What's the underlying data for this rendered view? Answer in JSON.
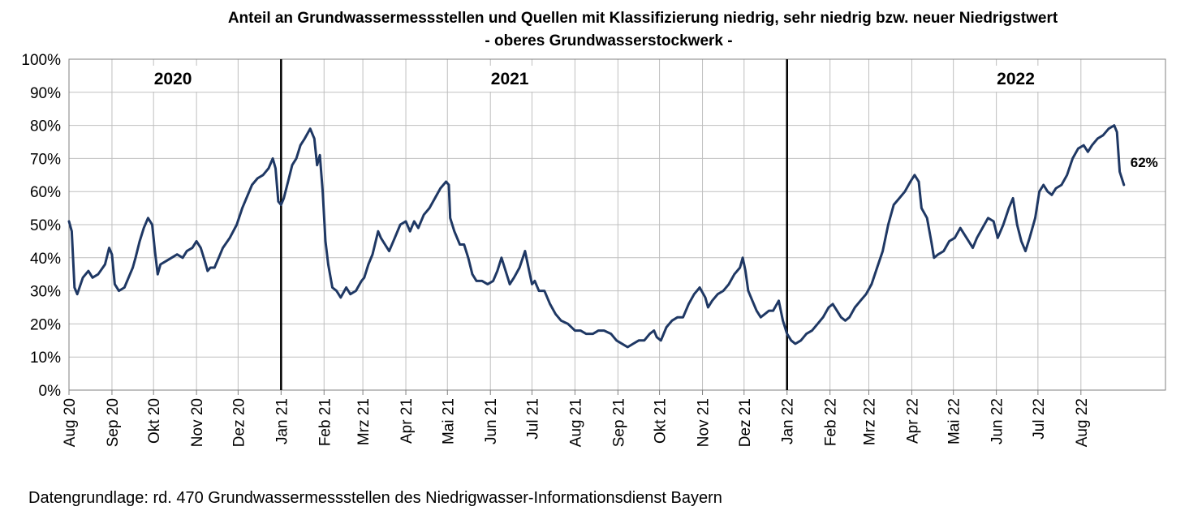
{
  "chart_data": {
    "type": "line",
    "title": "Anteil an Grundwassermessstellen und Quellen mit Klassifizierung niedrig, sehr niedrig bzw. neuer Niedrigstwert",
    "subtitle": "- oberes Grundwasserstockwerk -",
    "source_note": "Datengrundlage: rd. 470 Grundwassermessstellen des Niedrigwasser-Informationsdienst Bayern",
    "y_unit": "%",
    "ylim": [
      0,
      100
    ],
    "y_ticks": [
      "0%",
      "10%",
      "20%",
      "30%",
      "40%",
      "50%",
      "60%",
      "70%",
      "80%",
      "90%",
      "100%"
    ],
    "x_tick_labels": [
      "Aug 20",
      "Sep 20",
      "Okt 20",
      "Nov 20",
      "Dez 20",
      "Jan 21",
      "Feb 21",
      "Mrz 21",
      "Apr 21",
      "Mai 21",
      "Jun 21",
      "Jul 21",
      "Aug 21",
      "Sep 21",
      "Okt 21",
      "Nov 21",
      "Dez 21",
      "Jan 22",
      "Feb 22",
      "Mrz 22",
      "Apr 22",
      "Mai 22",
      "Jun 22",
      "Jul 22",
      "Aug 22"
    ],
    "x_range": [
      "2020-08-01",
      "2022-10-01"
    ],
    "grid": true,
    "year_labels": [
      {
        "text": "2020",
        "date": "2020-10-15"
      },
      {
        "text": "2021",
        "date": "2021-06-15"
      },
      {
        "text": "2022",
        "date": "2022-06-15"
      }
    ],
    "year_dividers": [
      "2021-01-01",
      "2022-01-01"
    ],
    "end_label": "62%",
    "line_color": "#1f3864",
    "series": [
      {
        "points": [
          [
            "2020-08-01",
            51
          ],
          [
            "2020-08-03",
            48
          ],
          [
            "2020-08-05",
            31
          ],
          [
            "2020-08-07",
            29
          ],
          [
            "2020-08-11",
            34
          ],
          [
            "2020-08-15",
            36
          ],
          [
            "2020-08-18",
            34
          ],
          [
            "2020-08-22",
            35
          ],
          [
            "2020-08-27",
            38
          ],
          [
            "2020-08-30",
            43
          ],
          [
            "2020-09-01",
            41
          ],
          [
            "2020-09-03",
            32
          ],
          [
            "2020-09-06",
            30
          ],
          [
            "2020-09-10",
            31
          ],
          [
            "2020-09-13",
            34
          ],
          [
            "2020-09-16",
            37
          ],
          [
            "2020-09-18",
            40
          ],
          [
            "2020-09-21",
            45
          ],
          [
            "2020-09-24",
            49
          ],
          [
            "2020-09-27",
            52
          ],
          [
            "2020-09-30",
            50
          ],
          [
            "2020-10-02",
            42
          ],
          [
            "2020-10-04",
            35
          ],
          [
            "2020-10-06",
            38
          ],
          [
            "2020-10-10",
            39
          ],
          [
            "2020-10-14",
            40
          ],
          [
            "2020-10-18",
            41
          ],
          [
            "2020-10-22",
            40
          ],
          [
            "2020-10-25",
            42
          ],
          [
            "2020-10-29",
            43
          ],
          [
            "2020-11-01",
            45
          ],
          [
            "2020-11-04",
            43
          ],
          [
            "2020-11-07",
            39
          ],
          [
            "2020-11-09",
            36
          ],
          [
            "2020-11-11",
            37
          ],
          [
            "2020-11-14",
            37
          ],
          [
            "2020-11-17",
            40
          ],
          [
            "2020-11-20",
            43
          ],
          [
            "2020-11-25",
            46
          ],
          [
            "2020-11-30",
            50
          ],
          [
            "2020-12-04",
            55
          ],
          [
            "2020-12-07",
            58
          ],
          [
            "2020-12-11",
            62
          ],
          [
            "2020-12-15",
            64
          ],
          [
            "2020-12-19",
            65
          ],
          [
            "2020-12-23",
            67
          ],
          [
            "2020-12-26",
            70
          ],
          [
            "2020-12-28",
            67
          ],
          [
            "2020-12-30",
            57
          ],
          [
            "2021-01-01",
            56
          ],
          [
            "2021-01-03",
            58
          ],
          [
            "2021-01-06",
            63
          ],
          [
            "2021-01-09",
            68
          ],
          [
            "2021-01-12",
            70
          ],
          [
            "2021-01-15",
            74
          ],
          [
            "2021-01-18",
            76
          ],
          [
            "2021-01-22",
            79
          ],
          [
            "2021-01-25",
            76
          ],
          [
            "2021-01-27",
            68
          ],
          [
            "2021-01-29",
            71
          ],
          [
            "2021-01-31",
            60
          ],
          [
            "2021-02-02",
            45
          ],
          [
            "2021-02-04",
            38
          ],
          [
            "2021-02-07",
            31
          ],
          [
            "2021-02-10",
            30
          ],
          [
            "2021-02-13",
            28
          ],
          [
            "2021-02-17",
            31
          ],
          [
            "2021-02-20",
            29
          ],
          [
            "2021-02-24",
            30
          ],
          [
            "2021-02-28",
            33
          ],
          [
            "2021-03-02",
            34
          ],
          [
            "2021-03-05",
            38
          ],
          [
            "2021-03-08",
            41
          ],
          [
            "2021-03-12",
            48
          ],
          [
            "2021-03-14",
            46
          ],
          [
            "2021-03-17",
            44
          ],
          [
            "2021-03-20",
            42
          ],
          [
            "2021-03-24",
            46
          ],
          [
            "2021-03-28",
            50
          ],
          [
            "2021-04-01",
            51
          ],
          [
            "2021-04-04",
            48
          ],
          [
            "2021-04-07",
            51
          ],
          [
            "2021-04-10",
            49
          ],
          [
            "2021-04-14",
            53
          ],
          [
            "2021-04-18",
            55
          ],
          [
            "2021-04-22",
            58
          ],
          [
            "2021-04-26",
            61
          ],
          [
            "2021-04-30",
            63
          ],
          [
            "2021-05-02",
            62
          ],
          [
            "2021-05-03",
            52
          ],
          [
            "2021-05-06",
            48
          ],
          [
            "2021-05-10",
            44
          ],
          [
            "2021-05-13",
            44
          ],
          [
            "2021-05-16",
            40
          ],
          [
            "2021-05-19",
            35
          ],
          [
            "2021-05-22",
            33
          ],
          [
            "2021-05-26",
            33
          ],
          [
            "2021-05-30",
            32
          ],
          [
            "2021-06-03",
            33
          ],
          [
            "2021-06-06",
            36
          ],
          [
            "2021-06-09",
            40
          ],
          [
            "2021-06-12",
            36
          ],
          [
            "2021-06-15",
            32
          ],
          [
            "2021-06-18",
            34
          ],
          [
            "2021-06-22",
            37
          ],
          [
            "2021-06-26",
            42
          ],
          [
            "2021-06-29",
            36
          ],
          [
            "2021-07-01",
            32
          ],
          [
            "2021-07-03",
            33
          ],
          [
            "2021-07-06",
            30
          ],
          [
            "2021-07-10",
            30
          ],
          [
            "2021-07-14",
            26
          ],
          [
            "2021-07-18",
            23
          ],
          [
            "2021-07-22",
            21
          ],
          [
            "2021-07-27",
            20
          ],
          [
            "2021-08-01",
            18
          ],
          [
            "2021-08-05",
            18
          ],
          [
            "2021-08-09",
            17
          ],
          [
            "2021-08-14",
            17
          ],
          [
            "2021-08-18",
            18
          ],
          [
            "2021-08-22",
            18
          ],
          [
            "2021-08-27",
            17
          ],
          [
            "2021-08-31",
            15
          ],
          [
            "2021-09-04",
            14
          ],
          [
            "2021-09-08",
            13
          ],
          [
            "2021-09-12",
            14
          ],
          [
            "2021-09-16",
            15
          ],
          [
            "2021-09-20",
            15
          ],
          [
            "2021-09-24",
            17
          ],
          [
            "2021-09-27",
            18
          ],
          [
            "2021-09-29",
            16
          ],
          [
            "2021-10-02",
            15
          ],
          [
            "2021-10-06",
            19
          ],
          [
            "2021-10-10",
            21
          ],
          [
            "2021-10-14",
            22
          ],
          [
            "2021-10-18",
            22
          ],
          [
            "2021-10-22",
            26
          ],
          [
            "2021-10-26",
            29
          ],
          [
            "2021-10-30",
            31
          ],
          [
            "2021-11-03",
            28
          ],
          [
            "2021-11-05",
            25
          ],
          [
            "2021-11-08",
            27
          ],
          [
            "2021-11-12",
            29
          ],
          [
            "2021-11-16",
            30
          ],
          [
            "2021-11-20",
            32
          ],
          [
            "2021-11-24",
            35
          ],
          [
            "2021-11-28",
            37
          ],
          [
            "2021-11-30",
            40
          ],
          [
            "2021-12-02",
            36
          ],
          [
            "2021-12-04",
            30
          ],
          [
            "2021-12-07",
            27
          ],
          [
            "2021-12-10",
            24
          ],
          [
            "2021-12-13",
            22
          ],
          [
            "2021-12-16",
            23
          ],
          [
            "2021-12-19",
            24
          ],
          [
            "2021-12-22",
            24
          ],
          [
            "2021-12-26",
            27
          ],
          [
            "2021-12-29",
            21
          ],
          [
            "2022-01-01",
            17
          ],
          [
            "2022-01-04",
            15
          ],
          [
            "2022-01-07",
            14
          ],
          [
            "2022-01-11",
            15
          ],
          [
            "2022-01-15",
            17
          ],
          [
            "2022-01-19",
            18
          ],
          [
            "2022-01-23",
            20
          ],
          [
            "2022-01-27",
            22
          ],
          [
            "2022-01-31",
            25
          ],
          [
            "2022-02-03",
            26
          ],
          [
            "2022-02-06",
            24
          ],
          [
            "2022-02-09",
            22
          ],
          [
            "2022-02-12",
            21
          ],
          [
            "2022-02-15",
            22
          ],
          [
            "2022-02-19",
            25
          ],
          [
            "2022-02-23",
            27
          ],
          [
            "2022-02-27",
            29
          ],
          [
            "2022-03-03",
            32
          ],
          [
            "2022-03-07",
            37
          ],
          [
            "2022-03-11",
            42
          ],
          [
            "2022-03-15",
            50
          ],
          [
            "2022-03-19",
            56
          ],
          [
            "2022-03-23",
            58
          ],
          [
            "2022-03-27",
            60
          ],
          [
            "2022-03-31",
            63
          ],
          [
            "2022-04-03",
            65
          ],
          [
            "2022-04-06",
            63
          ],
          [
            "2022-04-08",
            55
          ],
          [
            "2022-04-12",
            52
          ],
          [
            "2022-04-15",
            45
          ],
          [
            "2022-04-17",
            40
          ],
          [
            "2022-04-20",
            41
          ],
          [
            "2022-04-24",
            42
          ],
          [
            "2022-04-28",
            45
          ],
          [
            "2022-05-02",
            46
          ],
          [
            "2022-05-06",
            49
          ],
          [
            "2022-05-09",
            47
          ],
          [
            "2022-05-12",
            45
          ],
          [
            "2022-05-15",
            43
          ],
          [
            "2022-05-18",
            46
          ],
          [
            "2022-05-22",
            49
          ],
          [
            "2022-05-26",
            52
          ],
          [
            "2022-05-30",
            51
          ],
          [
            "2022-06-02",
            46
          ],
          [
            "2022-06-06",
            50
          ],
          [
            "2022-06-10",
            55
          ],
          [
            "2022-06-13",
            58
          ],
          [
            "2022-06-16",
            50
          ],
          [
            "2022-06-19",
            45
          ],
          [
            "2022-06-22",
            42
          ],
          [
            "2022-06-25",
            46
          ],
          [
            "2022-06-29",
            52
          ],
          [
            "2022-07-02",
            60
          ],
          [
            "2022-07-05",
            62
          ],
          [
            "2022-07-08",
            60
          ],
          [
            "2022-07-11",
            59
          ],
          [
            "2022-07-14",
            61
          ],
          [
            "2022-07-18",
            62
          ],
          [
            "2022-07-22",
            65
          ],
          [
            "2022-07-26",
            70
          ],
          [
            "2022-07-30",
            73
          ],
          [
            "2022-08-03",
            74
          ],
          [
            "2022-08-06",
            72
          ],
          [
            "2022-08-09",
            74
          ],
          [
            "2022-08-13",
            76
          ],
          [
            "2022-08-17",
            77
          ],
          [
            "2022-08-21",
            79
          ],
          [
            "2022-08-25",
            80
          ],
          [
            "2022-08-27",
            78
          ],
          [
            "2022-08-29",
            66
          ],
          [
            "2022-09-01",
            62
          ]
        ]
      }
    ]
  }
}
